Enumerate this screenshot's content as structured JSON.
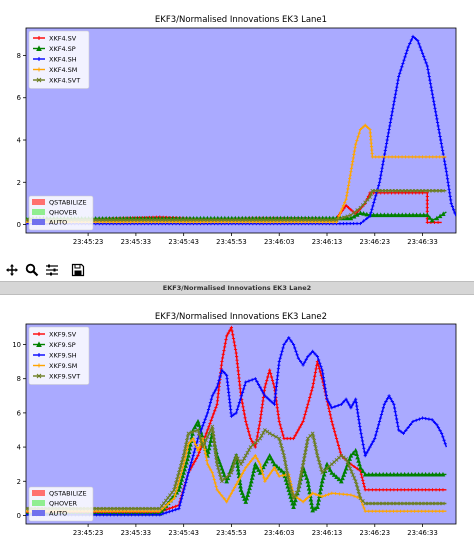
{
  "window_title": "EKF3/Normalised Innovations EK3 Lane2",
  "toolbar": {
    "buttons": [
      {
        "name": "pan-button",
        "icon": "move-arrows-icon"
      },
      {
        "name": "zoom-button",
        "icon": "magnifier-icon"
      },
      {
        "name": "configure-button",
        "icon": "sliders-icon"
      },
      {
        "name": "save-button",
        "icon": "floppy-disk-icon"
      }
    ]
  },
  "colors": {
    "plot_bg": "#aaaaff",
    "QSTABILIZE": "#ff7070",
    "QHOVER": "#90ee90",
    "AUTO": "#7070ee",
    "SV": "#ff0000",
    "SP": "#008000",
    "SH": "#0000ff",
    "SM": "#ffa500",
    "SVT": "#6b7d22"
  },
  "chart_data": [
    {
      "type": "line",
      "title": "EKF3/Normalised Innovations EK3 Lane1",
      "x_ticks": [
        "23:45:23",
        "23:45:33",
        "23:45:43",
        "23:45:53",
        "23:46:03",
        "23:46:13",
        "23:46:23",
        "23:46:33"
      ],
      "x_tick_seconds": [
        5,
        15,
        25,
        35,
        45,
        55,
        65,
        75
      ],
      "xlim": [
        -8,
        82
      ],
      "ylim": [
        -0.4,
        9.3
      ],
      "y_ticks": [
        0,
        2,
        4,
        6,
        8
      ],
      "grid": false,
      "legend": "top-left",
      "modes": [
        {
          "name": "QSTABILIZE"
        },
        {
          "name": "QHOVER"
        },
        {
          "name": "AUTO"
        }
      ],
      "mode_legend": "bottom-left",
      "series": [
        {
          "name": "XKF4.SV",
          "key": "SV",
          "points": [
            [
              -8,
              0.2
            ],
            [
              0,
              0.2
            ],
            [
              10,
              0.28
            ],
            [
              20,
              0.35
            ],
            [
              30,
              0.25
            ],
            [
              40,
              0.3
            ],
            [
              50,
              0.28
            ],
            [
              57,
              0.3
            ],
            [
              59,
              0.9
            ],
            [
              61,
              0.5
            ],
            [
              63,
              1.0
            ],
            [
              64,
              1.5
            ],
            [
              70,
              1.5
            ],
            [
              75,
              1.5
            ],
            [
              76,
              1.5
            ],
            [
              76,
              0.1
            ],
            [
              79,
              0.1
            ]
          ]
        },
        {
          "name": "XKF4.SP",
          "key": "SP",
          "points": [
            [
              -8,
              0.28
            ],
            [
              0,
              0.28
            ],
            [
              57,
              0.3
            ],
            [
              60,
              0.3
            ],
            [
              62,
              0.55
            ],
            [
              64,
              0.45
            ],
            [
              70,
              0.45
            ],
            [
              76,
              0.45
            ],
            [
              77,
              0.2
            ],
            [
              78,
              0.3
            ],
            [
              80,
              0.6
            ]
          ]
        },
        {
          "name": "XKF4.SH",
          "key": "SH",
          "points": [
            [
              -8,
              0.04
            ],
            [
              57,
              0.04
            ],
            [
              62,
              0.05
            ],
            [
              64,
              0.4
            ],
            [
              66,
              2.0
            ],
            [
              68,
              4.5
            ],
            [
              70,
              7.0
            ],
            [
              72,
              8.4
            ],
            [
              73,
              8.9
            ],
            [
              74,
              8.7
            ],
            [
              76,
              7.5
            ],
            [
              78,
              5.0
            ],
            [
              80,
              2.5
            ],
            [
              81,
              1.0
            ],
            [
              82,
              0.4
            ]
          ]
        },
        {
          "name": "XKF4.SM",
          "key": "SM",
          "points": [
            [
              -8,
              0.12
            ],
            [
              57,
              0.12
            ],
            [
              59,
              1.2
            ],
            [
              60,
              2.5
            ],
            [
              61,
              3.8
            ],
            [
              62,
              4.5
            ],
            [
              63,
              4.7
            ],
            [
              64,
              4.5
            ],
            [
              64.5,
              3.2
            ],
            [
              70,
              3.2
            ],
            [
              80,
              3.2
            ]
          ]
        },
        {
          "name": "XKF4.SVT",
          "key": "SVT",
          "points": [
            [
              -8,
              0.22
            ],
            [
              57,
              0.22
            ],
            [
              60,
              0.45
            ],
            [
              62,
              0.8
            ],
            [
              64,
              1.3
            ],
            [
              64.5,
              1.6
            ],
            [
              70,
              1.6
            ],
            [
              80,
              1.6
            ]
          ]
        }
      ]
    },
    {
      "type": "line",
      "title": "EKF3/Normalised Innovations EK3 Lane2",
      "x_ticks": [
        "23:45:23",
        "23:45:33",
        "23:45:43",
        "23:45:53",
        "23:46:03",
        "23:46:13",
        "23:46:23",
        "23:46:33"
      ],
      "x_tick_seconds": [
        5,
        15,
        25,
        35,
        45,
        55,
        65,
        75
      ],
      "xlim": [
        -8,
        82
      ],
      "ylim": [
        -0.5,
        11.2
      ],
      "y_ticks": [
        0,
        2,
        4,
        6,
        8,
        10
      ],
      "grid": false,
      "legend": "top-left",
      "modes": [
        {
          "name": "QSTABILIZE"
        },
        {
          "name": "QHOVER"
        },
        {
          "name": "AUTO"
        }
      ],
      "mode_legend": "bottom-left",
      "series": [
        {
          "name": "XKF9.SV",
          "key": "SV",
          "points": [
            [
              -8,
              0.2
            ],
            [
              20,
              0.2
            ],
            [
              24,
              0.6
            ],
            [
              26,
              2.5
            ],
            [
              28,
              3.5
            ],
            [
              30,
              5.0
            ],
            [
              32,
              6.5
            ],
            [
              33,
              9.0
            ],
            [
              34,
              10.5
            ],
            [
              35,
              11.0
            ],
            [
              36,
              9.5
            ],
            [
              37,
              7.0
            ],
            [
              38,
              5.5
            ],
            [
              39,
              4.5
            ],
            [
              40,
              4.0
            ],
            [
              41,
              5.5
            ],
            [
              42,
              7.5
            ],
            [
              43,
              8.5
            ],
            [
              44,
              7.5
            ],
            [
              45,
              5.5
            ],
            [
              46,
              4.5
            ],
            [
              48,
              4.5
            ],
            [
              50,
              5.5
            ],
            [
              52,
              7.5
            ],
            [
              53,
              9.0
            ],
            [
              54,
              8.0
            ],
            [
              56,
              5.5
            ],
            [
              58,
              3.5
            ],
            [
              60,
              3.0
            ],
            [
              62,
              2.6
            ],
            [
              63,
              1.5
            ],
            [
              72,
              1.5
            ],
            [
              80,
              1.5
            ]
          ]
        },
        {
          "name": "XKF9.SP",
          "key": "SP",
          "points": [
            [
              -8,
              0.1
            ],
            [
              20,
              0.1
            ],
            [
              24,
              1.5
            ],
            [
              26,
              3.5
            ],
            [
              27,
              5.0
            ],
            [
              28,
              5.5
            ],
            [
              30,
              3.5
            ],
            [
              31,
              4.8
            ],
            [
              32,
              3.5
            ],
            [
              34,
              2.0
            ],
            [
              36,
              3.5
            ],
            [
              37,
              1.5
            ],
            [
              38,
              0.8
            ],
            [
              39,
              1.8
            ],
            [
              40,
              3.0
            ],
            [
              41,
              2.5
            ],
            [
              43,
              3.5
            ],
            [
              44,
              3.0
            ],
            [
              46,
              2.5
            ],
            [
              47,
              1.5
            ],
            [
              48,
              0.5
            ],
            [
              49,
              1.5
            ],
            [
              50,
              2.8
            ],
            [
              51,
              2.0
            ],
            [
              52,
              0.3
            ],
            [
              53,
              0.5
            ],
            [
              54,
              2.0
            ],
            [
              55,
              3.0
            ],
            [
              56,
              2.5
            ],
            [
              58,
              2.0
            ],
            [
              60,
              3.5
            ],
            [
              61,
              3.8
            ],
            [
              62,
              2.8
            ],
            [
              63,
              2.4
            ],
            [
              72,
              2.4
            ],
            [
              80,
              2.4
            ]
          ]
        },
        {
          "name": "XKF9.SH",
          "key": "SH",
          "points": [
            [
              -8,
              0.04
            ],
            [
              20,
              0.04
            ],
            [
              24,
              0.4
            ],
            [
              26,
              2.5
            ],
            [
              28,
              4.5
            ],
            [
              30,
              6.0
            ],
            [
              31,
              7.0
            ],
            [
              32,
              7.5
            ],
            [
              33,
              8.5
            ],
            [
              34,
              8.2
            ],
            [
              35,
              5.8
            ],
            [
              36,
              6.0
            ],
            [
              38,
              7.8
            ],
            [
              40,
              8.0
            ],
            [
              42,
              7.0
            ],
            [
              44,
              6.5
            ],
            [
              45,
              9.0
            ],
            [
              46,
              10.0
            ],
            [
              47,
              10.4
            ],
            [
              48,
              10.0
            ],
            [
              49,
              9.2
            ],
            [
              50,
              8.8
            ],
            [
              51,
              9.3
            ],
            [
              52,
              9.6
            ],
            [
              53,
              9.3
            ],
            [
              54,
              8.5
            ],
            [
              55,
              6.8
            ],
            [
              56,
              6.3
            ],
            [
              58,
              6.5
            ],
            [
              59,
              6.8
            ],
            [
              60,
              6.3
            ],
            [
              61,
              6.8
            ],
            [
              62,
              5.0
            ],
            [
              63,
              3.5
            ],
            [
              65,
              4.5
            ],
            [
              67,
              6.5
            ],
            [
              68,
              7.0
            ],
            [
              69,
              6.5
            ],
            [
              70,
              5.0
            ],
            [
              71,
              4.8
            ],
            [
              73,
              5.5
            ],
            [
              75,
              5.7
            ],
            [
              77,
              5.6
            ],
            [
              78,
              5.3
            ],
            [
              79,
              4.8
            ],
            [
              80,
              4.0
            ]
          ]
        },
        {
          "name": "XKF9.SM",
          "key": "SM",
          "points": [
            [
              -8,
              0.25
            ],
            [
              20,
              0.25
            ],
            [
              23,
              1.0
            ],
            [
              25,
              3.0
            ],
            [
              26,
              4.2
            ],
            [
              27,
              4.5
            ],
            [
              28,
              3.8
            ],
            [
              29,
              4.5
            ],
            [
              30,
              3.0
            ],
            [
              31,
              2.5
            ],
            [
              32,
              1.5
            ],
            [
              34,
              0.8
            ],
            [
              36,
              1.8
            ],
            [
              38,
              2.8
            ],
            [
              40,
              3.5
            ],
            [
              41,
              3.0
            ],
            [
              42,
              2.0
            ],
            [
              44,
              2.8
            ],
            [
              45,
              2.3
            ],
            [
              47,
              2.4
            ],
            [
              48,
              1.2
            ],
            [
              50,
              0.8
            ],
            [
              52,
              1.3
            ],
            [
              54,
              1.1
            ],
            [
              56,
              1.3
            ],
            [
              60,
              1.2
            ],
            [
              62,
              1.0
            ],
            [
              63,
              0.25
            ],
            [
              80,
              0.25
            ]
          ]
        },
        {
          "name": "XKF9.SVT",
          "key": "SVT",
          "points": [
            [
              -8,
              0.4
            ],
            [
              20,
              0.4
            ],
            [
              23,
              1.5
            ],
            [
              25,
              3.5
            ],
            [
              26,
              4.8
            ],
            [
              28,
              5.0
            ],
            [
              29,
              4.0
            ],
            [
              31,
              5.2
            ],
            [
              32,
              3.0
            ],
            [
              33,
              2.0
            ],
            [
              35,
              2.5
            ],
            [
              36,
              3.5
            ],
            [
              37,
              3.0
            ],
            [
              39,
              4.0
            ],
            [
              41,
              4.5
            ],
            [
              42,
              5.0
            ],
            [
              43,
              4.8
            ],
            [
              45,
              4.5
            ],
            [
              46,
              3.5
            ],
            [
              47,
              2.0
            ],
            [
              48,
              1.0
            ],
            [
              49,
              1.5
            ],
            [
              51,
              4.5
            ],
            [
              52,
              4.8
            ],
            [
              53,
              3.5
            ],
            [
              54,
              2.5
            ],
            [
              56,
              3.0
            ],
            [
              58,
              3.5
            ],
            [
              59,
              3.3
            ],
            [
              61,
              2.0
            ],
            [
              62,
              1.0
            ],
            [
              63,
              0.7
            ],
            [
              80,
              0.7
            ]
          ]
        }
      ]
    }
  ]
}
